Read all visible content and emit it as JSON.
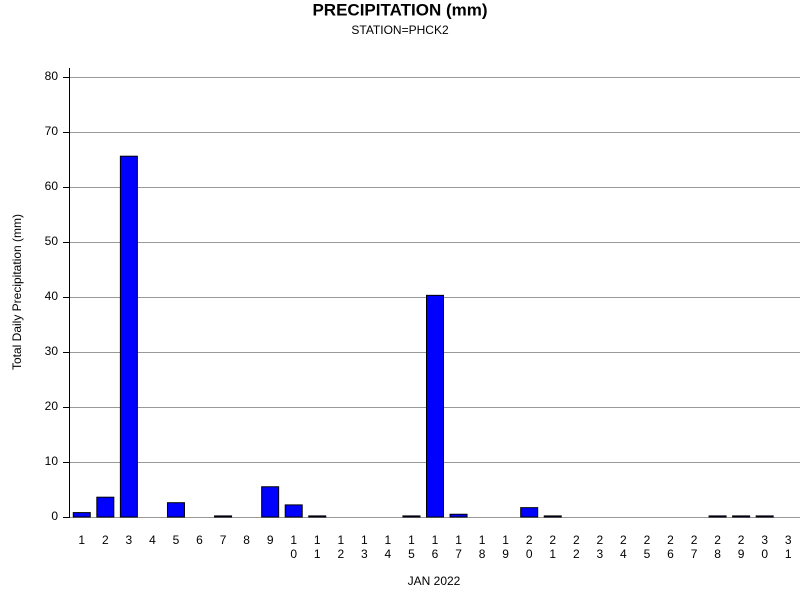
{
  "chart_data": {
    "type": "bar",
    "title": "PRECIPITATION (mm)",
    "subtitle": "STATION=PHCK2",
    "x_label": "JAN 2022",
    "y_label": "Total Daily Precipitation (mm)",
    "categories": [
      "1",
      "2",
      "3",
      "4",
      "5",
      "6",
      "7",
      "8",
      "9",
      "10",
      "11",
      "12",
      "13",
      "14",
      "15",
      "16",
      "17",
      "18",
      "19",
      "20",
      "21",
      "22",
      "23",
      "24",
      "25",
      "26",
      "27",
      "28",
      "29",
      "30",
      "31"
    ],
    "values": [
      0.8,
      3.6,
      65.6,
      0,
      2.6,
      0,
      0.2,
      0,
      5.5,
      2.2,
      0.2,
      0,
      0,
      0,
      0.2,
      40.3,
      0.5,
      0,
      0,
      1.7,
      0.2,
      0,
      0,
      0,
      0,
      0,
      0,
      0.2,
      0.2,
      0.2,
      0
    ],
    "color": "#0000ff",
    "ylim": [
      0,
      80
    ],
    "yticks": [
      0,
      10,
      20,
      30,
      40,
      50,
      60,
      70,
      80
    ],
    "grid": true
  }
}
